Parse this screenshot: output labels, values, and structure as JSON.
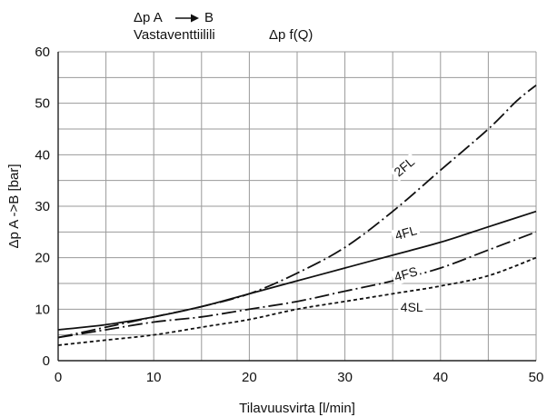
{
  "header": {
    "line1_prefix": "Δp A",
    "line1_suffix": "B",
    "line2_left": "Vastaventtiilili",
    "line2_right": "Δp f(Q)"
  },
  "chart_data": {
    "type": "line",
    "xlabel": "Tilavuusvirta [l/min]",
    "ylabel": "Δp  A ->B [bar]",
    "xlim": [
      0,
      50
    ],
    "ylim": [
      0,
      60
    ],
    "x_ticks": [
      0,
      10,
      20,
      30,
      40,
      50
    ],
    "y_ticks": [
      0,
      10,
      20,
      30,
      40,
      50,
      60
    ],
    "grid": true,
    "series": [
      {
        "name": "2FL",
        "style": "dash-dot",
        "x": [
          0,
          5,
          10,
          15,
          20,
          25,
          30,
          35,
          40,
          45,
          48,
          50
        ],
        "y": [
          4.5,
          6.5,
          8.5,
          10.5,
          13,
          17,
          22,
          29,
          37,
          45,
          50.5,
          53.5
        ]
      },
      {
        "name": "4FL",
        "style": "solid",
        "x": [
          0,
          5,
          10,
          15,
          20,
          25,
          30,
          35,
          40,
          45,
          50
        ],
        "y": [
          6,
          7,
          8.5,
          10.5,
          13,
          15.5,
          18,
          20.5,
          23,
          26,
          29
        ]
      },
      {
        "name": "4FS",
        "style": "dash-dot",
        "x": [
          0,
          5,
          10,
          15,
          20,
          25,
          30,
          35,
          40,
          45,
          50
        ],
        "y": [
          4.5,
          6,
          7.5,
          8.5,
          10,
          11.5,
          13.5,
          15.5,
          18,
          21.5,
          25
        ]
      },
      {
        "name": "4SL",
        "style": "dotted",
        "x": [
          0,
          5,
          10,
          15,
          20,
          25,
          30,
          35,
          40,
          45,
          50
        ],
        "y": [
          3,
          4,
          5,
          6.5,
          8,
          10,
          11.5,
          13,
          14.5,
          16.5,
          20
        ]
      }
    ]
  }
}
